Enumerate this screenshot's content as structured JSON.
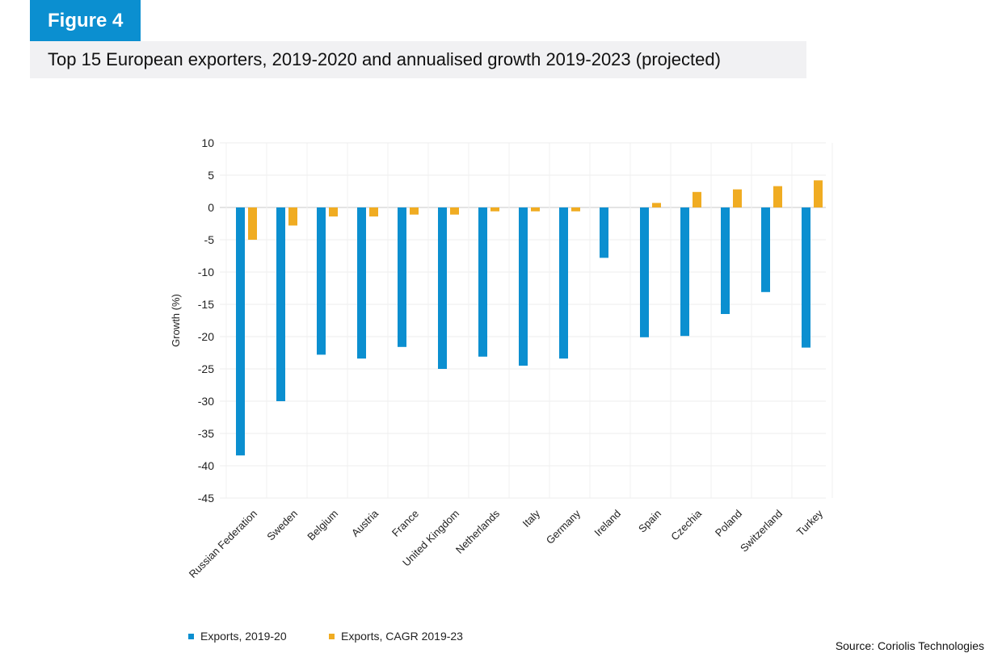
{
  "figure_label": "Figure 4",
  "chart_data": {
    "type": "bar",
    "title": "Top 15 European exporters, 2019-2020 and annualised growth 2019-2023 (projected)",
    "ylabel": "Growth (%)",
    "xlabel": "",
    "ylim": [
      -45,
      10
    ],
    "yticks": [
      10,
      5,
      0,
      -5,
      -10,
      -15,
      -20,
      -25,
      -30,
      -35,
      -40,
      -45
    ],
    "grid": true,
    "legend_position": "bottom-left",
    "categories": [
      "Russian Federation",
      "Sweden",
      "Belgium",
      "Austria",
      "France",
      "United Kingdom",
      "Netherlands",
      "Italy",
      "Germany",
      "Ireland",
      "Spain",
      "Czechia",
      "Poland",
      "Switzerland",
      "Turkey"
    ],
    "series": [
      {
        "name": "Exports, 2019-20",
        "color": "#0b8fd0",
        "values": [
          -38.4,
          -30.0,
          -22.8,
          -23.4,
          -21.6,
          -25.0,
          -23.1,
          -24.5,
          -23.4,
          -7.8,
          -20.1,
          -19.9,
          -16.5,
          -13.1,
          -21.7
        ]
      },
      {
        "name": "Exports, CAGR 2019-23",
        "color": "#f0ac22",
        "values": [
          -5.0,
          -2.8,
          -1.4,
          -1.4,
          -1.1,
          -1.1,
          -0.6,
          -0.6,
          -0.6,
          null,
          0.7,
          2.4,
          2.8,
          3.3,
          4.2
        ]
      }
    ]
  },
  "source": "Source: Coriolis Technologies"
}
